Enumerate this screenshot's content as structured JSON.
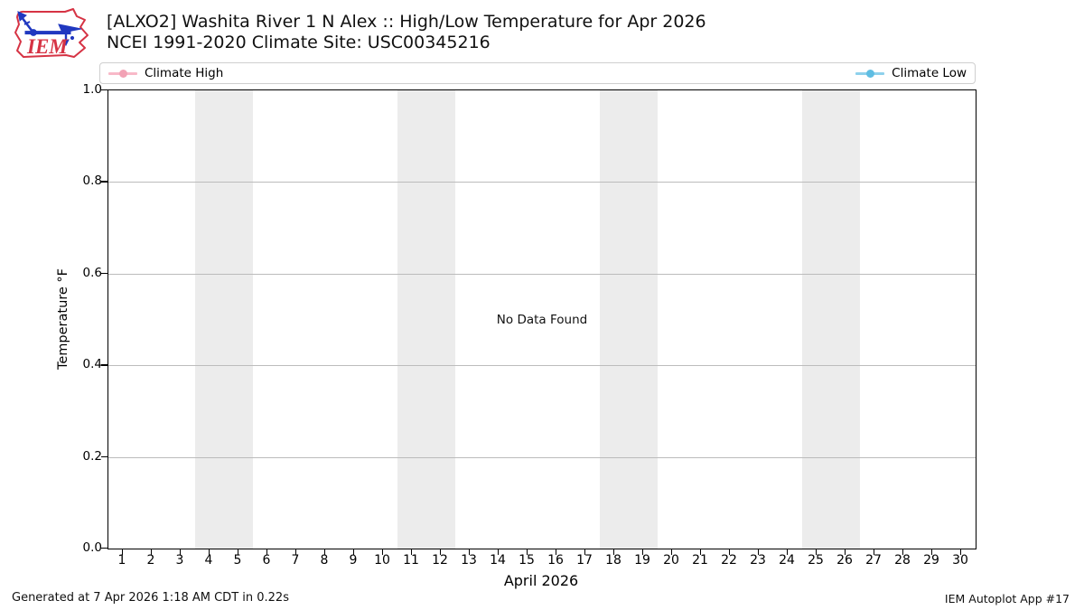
{
  "header": {
    "title": "[ALXO2] Washita River 1 N Alex :: High/Low Temperature for Apr 2026",
    "subtitle": "NCEI 1991-2020 Climate Site: USC00345216"
  },
  "logo": {
    "text": "IEM",
    "outline_color": "#d63344",
    "vane_color": "#2038c0"
  },
  "legend": {
    "items": [
      {
        "label": "Climate High",
        "line_color": "#f8b9c8",
        "marker_color": "#f2a2b5"
      },
      {
        "label": "Climate Low",
        "line_color": "#8ed1ec",
        "marker_color": "#5fbde2"
      }
    ]
  },
  "chart_data": {
    "type": "line",
    "title": "[ALXO2] Washita River 1 N Alex :: High/Low Temperature for Apr 2026",
    "subtitle": "NCEI 1991-2020 Climate Site: USC00345216",
    "xlabel": "April 2026",
    "ylabel": "Temperature °F",
    "xlim": [
      0.5,
      30.5
    ],
    "ylim": [
      0.0,
      1.0
    ],
    "x_ticks": [
      1,
      2,
      3,
      4,
      5,
      6,
      7,
      8,
      9,
      10,
      11,
      12,
      13,
      14,
      15,
      16,
      17,
      18,
      19,
      20,
      21,
      22,
      23,
      24,
      25,
      26,
      27,
      28,
      29,
      30
    ],
    "y_ticks": [
      0.0,
      0.2,
      0.4,
      0.6,
      0.8,
      1.0
    ],
    "grid": "horizontal gridlines only",
    "legend_position": "top, expanded across full axes width",
    "series": [
      {
        "name": "Climate High",
        "color": "#f8b9c8",
        "values": []
      },
      {
        "name": "Climate Low",
        "color": "#8ed1ec",
        "values": []
      }
    ],
    "annotation": "No Data Found",
    "shaded_bands": {
      "color": "#ececec",
      "note": "weekend shading",
      "x_ranges": [
        [
          3.5,
          5.5
        ],
        [
          10.5,
          12.5
        ],
        [
          17.5,
          19.5
        ],
        [
          24.5,
          26.5
        ]
      ]
    }
  },
  "plot": {
    "no_data_text": "No Data Found"
  },
  "footer": {
    "left": "Generated at 7 Apr 2026 1:18 AM CDT in 0.22s",
    "right": "IEM Autoplot App #17"
  }
}
